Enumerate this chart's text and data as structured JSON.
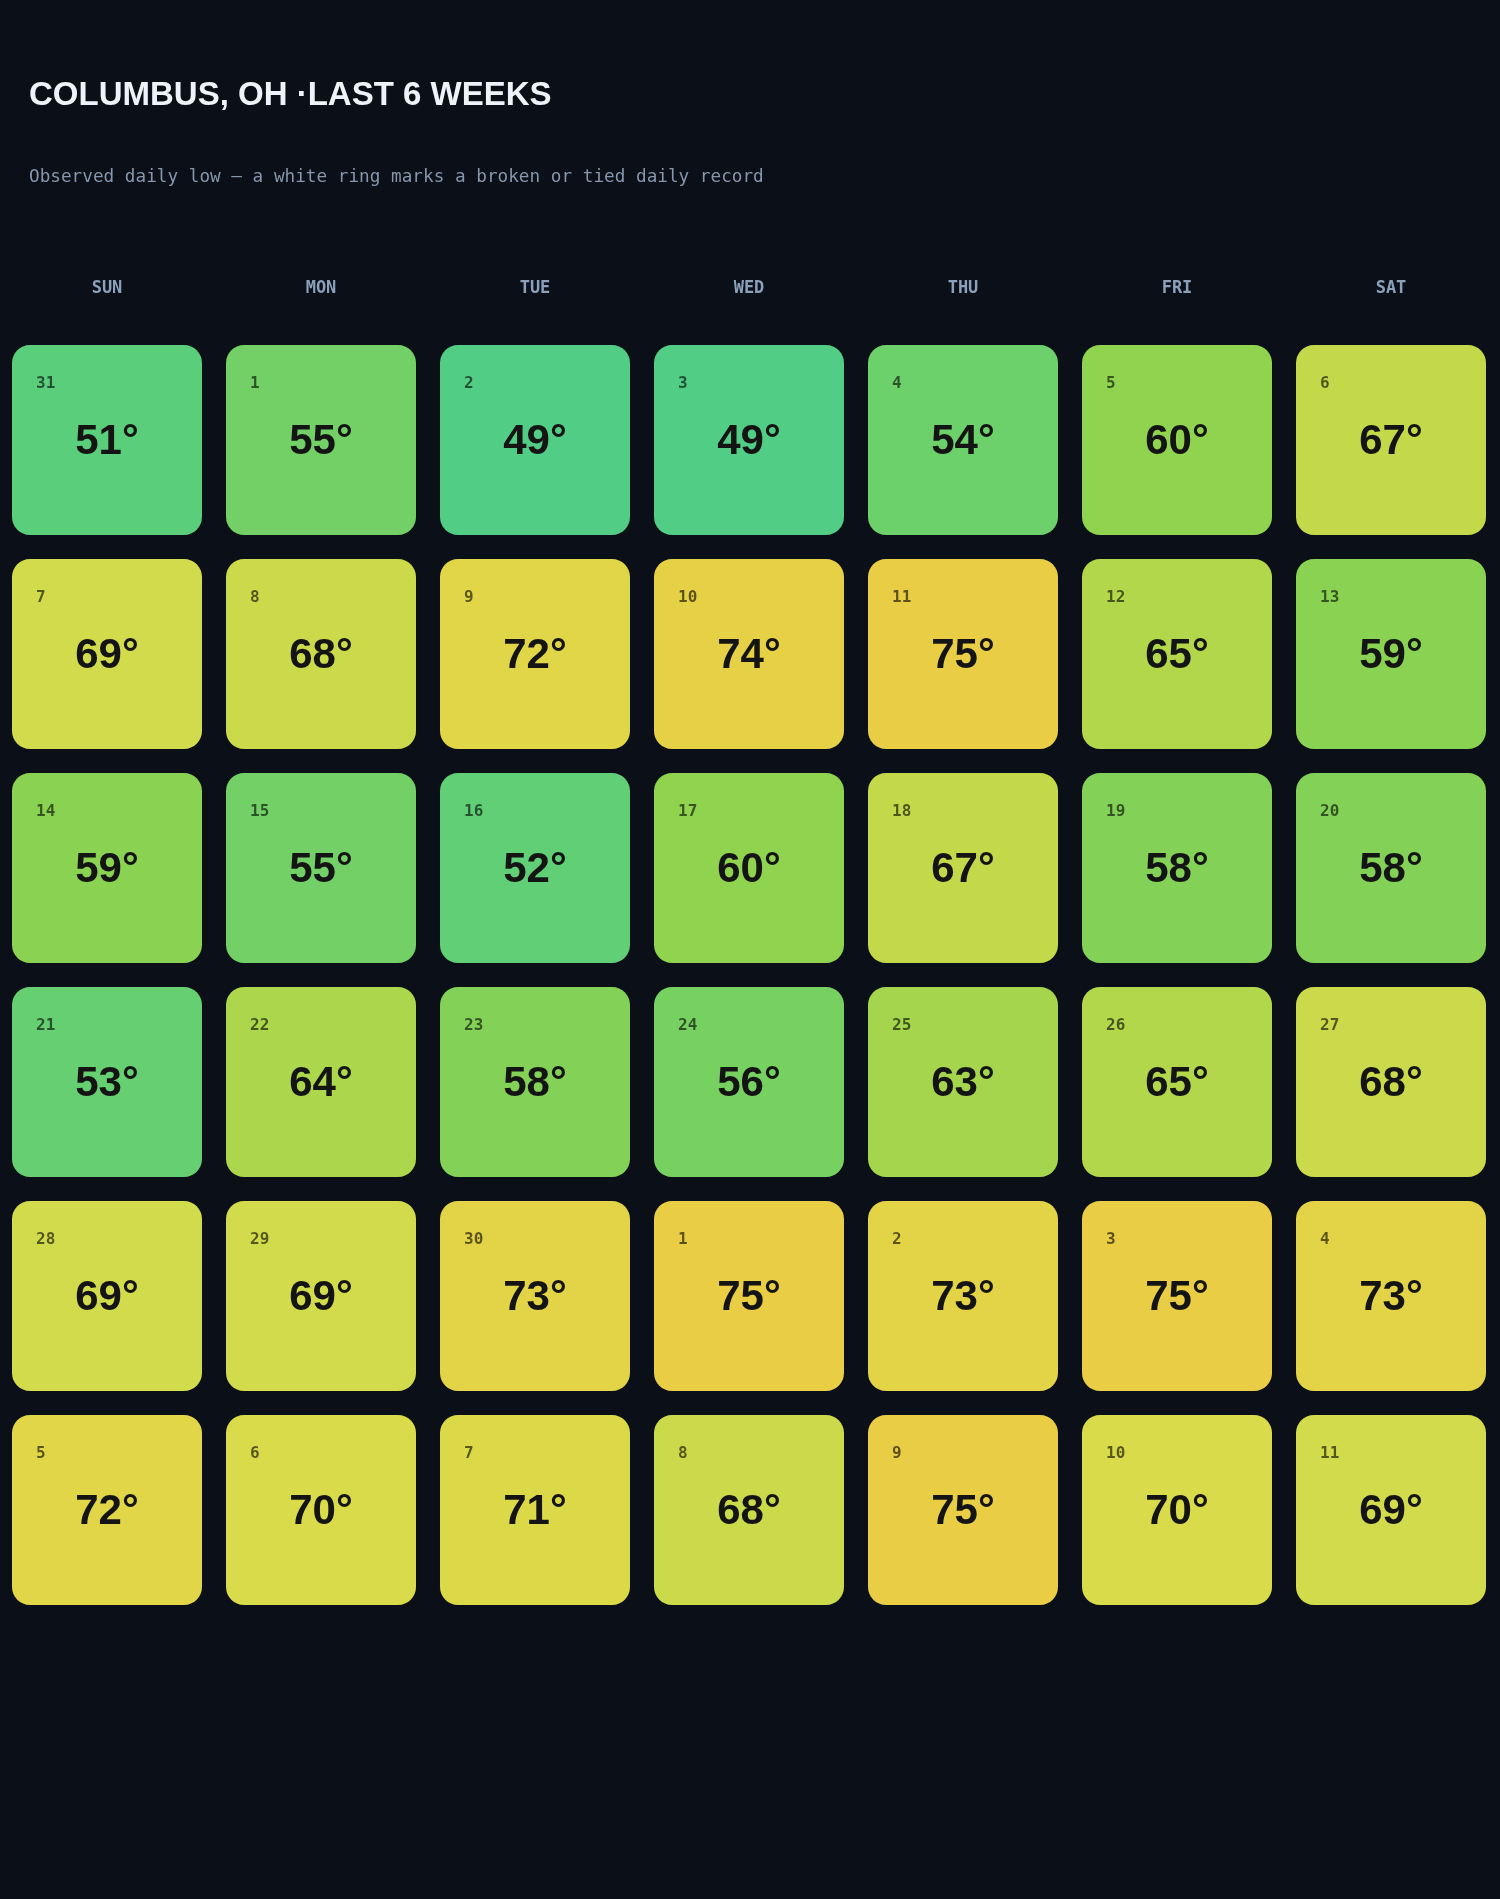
{
  "chart_data": {
    "type": "heatmap",
    "title": "COLUMBUS, OH ·LAST 6 WEEKS",
    "subtitle": "Observed daily low — a white ring marks a broken or tied daily record",
    "categories": [
      "SUN",
      "MON",
      "TUE",
      "WED",
      "THU",
      "FRI",
      "SAT"
    ],
    "y_categories": [
      null,
      null,
      null,
      null,
      null,
      null
    ],
    "cells": [
      [
        51,
        55,
        49,
        49,
        54,
        60,
        67
      ],
      [
        69,
        68,
        72,
        74,
        75,
        65,
        59
      ],
      [
        59,
        55,
        52,
        60,
        67,
        58,
        58
      ],
      [
        53,
        64,
        58,
        56,
        63,
        65,
        68
      ],
      [
        69,
        69,
        73,
        75,
        73,
        75,
        73
      ],
      [
        72,
        70,
        71,
        68,
        75,
        70,
        69
      ]
    ],
    "cell_labels": [
      [
        "51°",
        "55°",
        "49°",
        "49°",
        "54°",
        "60°",
        "67°"
      ],
      [
        "69°",
        "68°",
        "72°",
        "74°",
        "75°",
        "65°",
        "59°"
      ],
      [
        "59°",
        "55°",
        "52°",
        "60°",
        "67°",
        "58°",
        "58°"
      ],
      [
        "53°",
        "64°",
        "58°",
        "56°",
        "63°",
        "65°",
        "68°"
      ],
      [
        "69°",
        "69°",
        "73°",
        "75°",
        "73°",
        "75°",
        "73°"
      ],
      [
        "72°",
        "70°",
        "71°",
        "68°",
        "75°",
        "70°",
        "69°"
      ]
    ],
    "annotations": [
      "31",
      "1",
      "2",
      "3",
      "4",
      "5",
      "6",
      "7",
      "8",
      "9",
      "10",
      "11",
      "12",
      "13",
      "14",
      "15",
      "16",
      "17",
      "18",
      "19",
      "20",
      "21",
      "22",
      "23",
      "24",
      "25",
      "26",
      "27",
      "28",
      "29",
      "30",
      "1",
      "2",
      "3",
      "4",
      "5",
      "6",
      "7",
      "8",
      "9",
      "10",
      "11"
    ],
    "colors": [
      "#52cd86",
      "#6dd06a",
      "#8cd250",
      "#b0d64b",
      "#d8dc4b",
      "#e9cd44"
    ]
  }
}
